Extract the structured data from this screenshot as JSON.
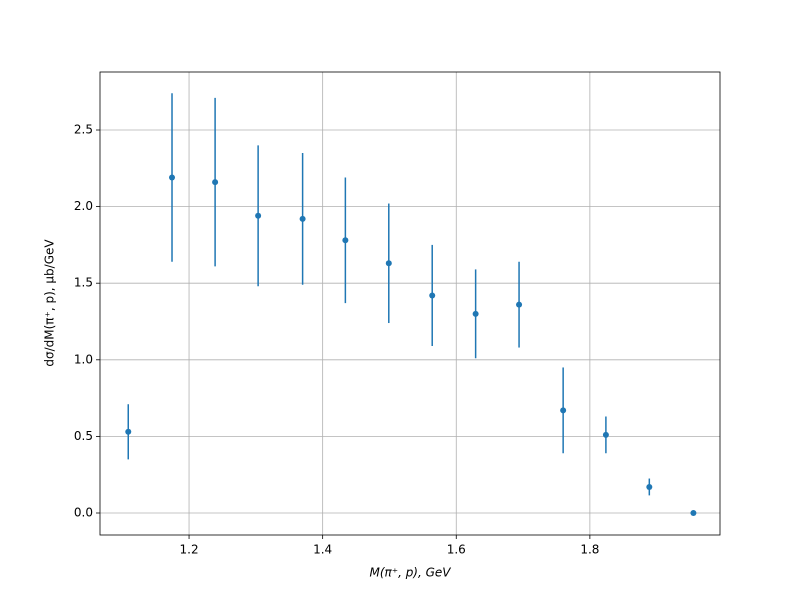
{
  "chart_data": {
    "type": "scatter",
    "xlabel": "M(π⁺, p), GeV",
    "ylabel": "dσ/dM(π⁺, p), μb/GeV",
    "series": [
      {
        "color": "#1f77b4",
        "x": [
          1.109,
          1.1745,
          1.239,
          1.3034,
          1.37,
          1.434,
          1.499,
          1.564,
          1.629,
          1.694,
          1.76,
          1.824,
          1.889,
          1.955
        ],
        "values": [
          0.53,
          2.19,
          2.16,
          1.94,
          1.92,
          1.78,
          1.63,
          1.42,
          1.3,
          1.36,
          0.67,
          0.51,
          0.17,
          0.0
        ],
        "errors": [
          0.18,
          0.55,
          0.55,
          0.46,
          0.43,
          0.41,
          0.39,
          0.33,
          0.29,
          0.28,
          0.28,
          0.12,
          0.055,
          0.0
        ]
      }
    ],
    "xlim": [
      1.0667,
      1.9948
    ],
    "ylim": [
      -0.1436,
      2.8786
    ],
    "xticks": [
      1.2,
      1.4,
      1.6,
      1.8
    ],
    "yticks": [
      {
        "value": 0,
        "label": "0.0"
      },
      0.5,
      {
        "value": 1,
        "label": "1.0"
      },
      1.5,
      {
        "value": 2,
        "label": "2.0"
      },
      2.5
    ],
    "grid": true
  }
}
